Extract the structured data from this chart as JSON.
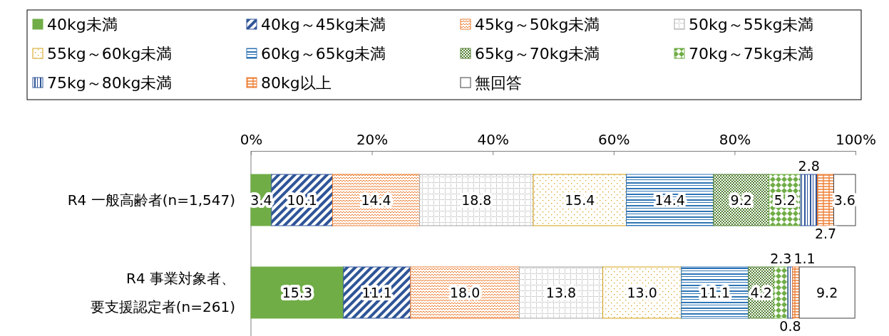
{
  "chart_data": {
    "type": "bar",
    "orientation": "horizontal",
    "stacked": true,
    "legend": "top",
    "grid": false,
    "categories": [
      "R4 一般高齢者(n=1,547)",
      "R4 事業対象者、要支援認定者(n=261)"
    ],
    "xlim": [
      0,
      100
    ],
    "xticks": [
      {
        "value": 0,
        "label": "0%"
      },
      {
        "value": 20,
        "label": "20%"
      },
      {
        "value": 40,
        "label": "40%"
      },
      {
        "value": 60,
        "label": "60%"
      },
      {
        "value": 80,
        "label": "80%"
      },
      {
        "value": 100,
        "label": "100%"
      }
    ],
    "series": [
      {
        "name": "40kg未満",
        "color": "#70ad47",
        "values": [
          3.4,
          15.3
        ],
        "value_labels": [
          "3.4",
          "15.3"
        ]
      },
      {
        "name": "40kg～45kg未満",
        "color": "#2f5597",
        "values": [
          10.1,
          11.1
        ],
        "value_labels": [
          "10.1",
          "11.1"
        ]
      },
      {
        "name": "45kg～50kg未満",
        "color": "#ed7d31",
        "values": [
          14.4,
          18.0
        ],
        "value_labels": [
          "14.4",
          "18.0"
        ]
      },
      {
        "name": "50kg～55kg未満",
        "color": "#a5a5a5",
        "values": [
          18.8,
          13.8
        ],
        "value_labels": [
          "18.8",
          "13.8"
        ]
      },
      {
        "name": "55kg～60kg未満",
        "color": "#d4a017",
        "values": [
          15.4,
          13.0
        ],
        "value_labels": [
          "15.4",
          "13.0"
        ]
      },
      {
        "name": "60kg～65kg未満",
        "color": "#2e75b6",
        "values": [
          14.4,
          11.1
        ],
        "value_labels": [
          "14.4",
          "11.1"
        ]
      },
      {
        "name": "65kg～70kg未満",
        "color": "#548235",
        "values": [
          9.2,
          4.2
        ],
        "value_labels": [
          "9.2",
          "4.2"
        ]
      },
      {
        "name": "70kg～75kg未満",
        "color": "#70ad47",
        "values": [
          5.2,
          2.3
        ],
        "value_labels": [
          "5.2",
          "2.3"
        ]
      },
      {
        "name": "75kg～80kg未満",
        "color": "#2f5597",
        "values": [
          2.8,
          0.8
        ],
        "value_labels": [
          "2.8",
          "0.8"
        ]
      },
      {
        "name": "80kg以上",
        "color": "#ed7d31",
        "values": [
          2.7,
          1.1
        ],
        "value_labels": [
          "2.7",
          "1.1"
        ]
      },
      {
        "name": "無回答",
        "color": "#ffffff",
        "values": [
          3.6,
          9.2
        ],
        "value_labels": [
          "3.6",
          "9.2"
        ]
      }
    ]
  }
}
